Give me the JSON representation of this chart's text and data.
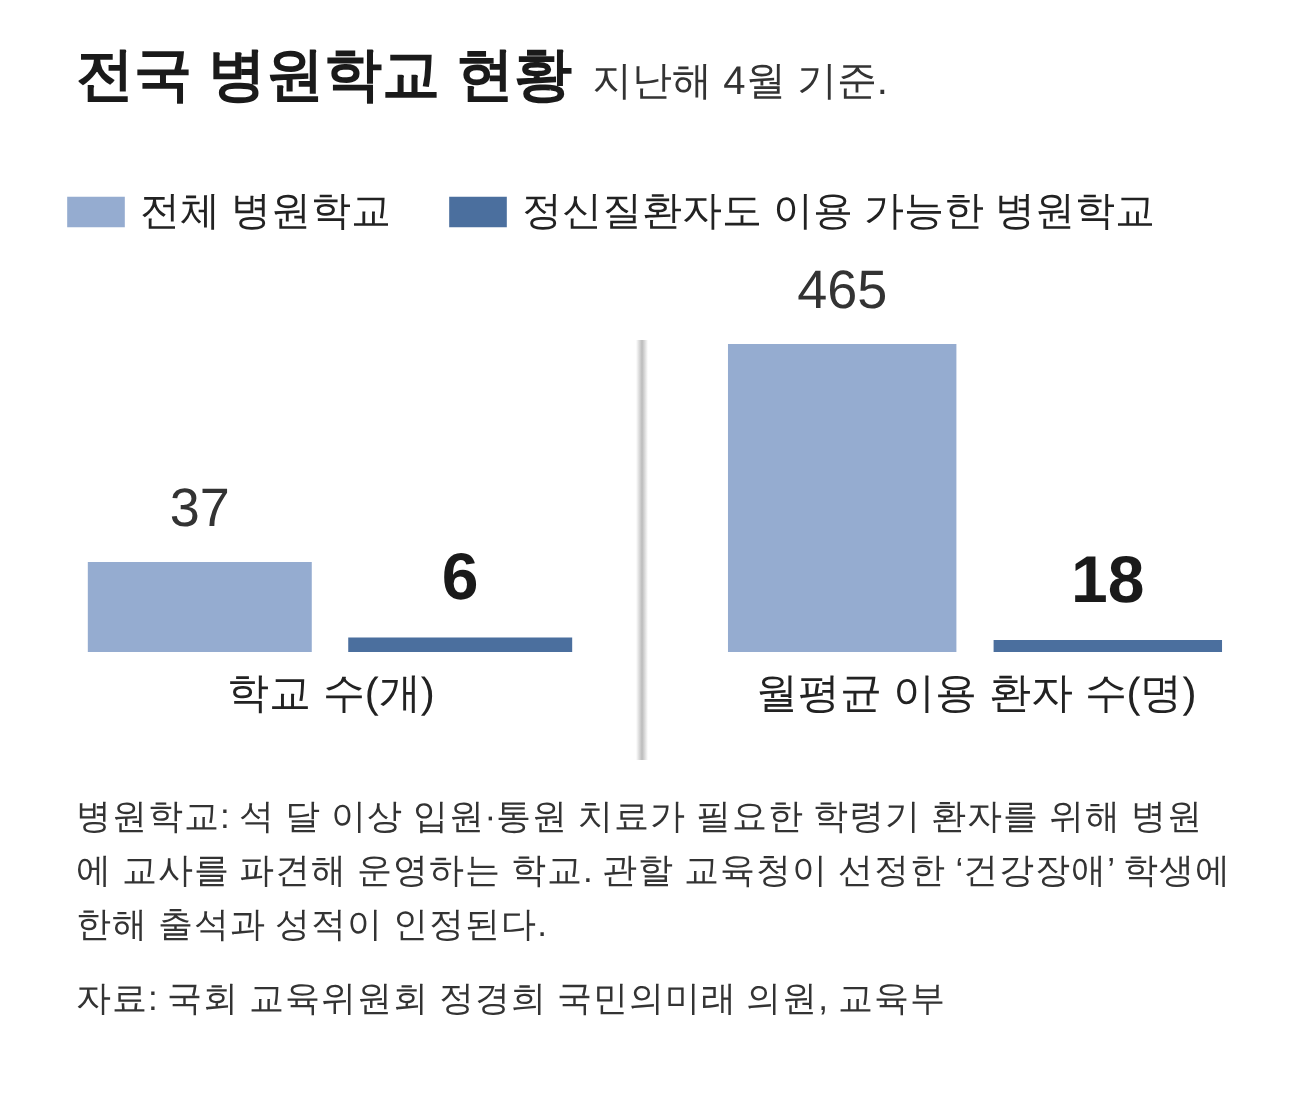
{
  "chart_data": [
    {
      "type": "bar",
      "title": "전국 병원학교 현황",
      "xlabel": "학교 수(개)",
      "categories": [
        null
      ],
      "legend": "top",
      "data_labels": true,
      "series": [
        {
          "name": "전체 병원학교",
          "color": "#95acd0",
          "values": [
            37
          ]
        },
        {
          "name": "정신질환자도 이용 가능한 병원학교",
          "color": "#4b6f9e",
          "values": [
            6
          ]
        }
      ],
      "annotations": [
        "병원학교: 석 달 이상 입원·통원 치료가 필요한 학령기 환자를 위해 병원에 교사를 파견해 운영하는 학교. 관할 교육청이 선정한 ‘건강장애’ 학생에 한해 출석과 성적이 인정된다.",
        "자료: 국회 교육위원회 정경희 국민의미래 의원, 교육부"
      ]
    },
    {
      "type": "bar",
      "subtitle": "지난해 4월 기준.",
      "xlabel": "월평균 이용 환자 수(명)",
      "categories": [
        null
      ],
      "data_labels": true,
      "series": [
        {
          "color": "#95acd0",
          "values": [
            465
          ]
        },
        {
          "color": "#4b6f9e",
          "values": [
            18
          ]
        }
      ]
    }
  ]
}
